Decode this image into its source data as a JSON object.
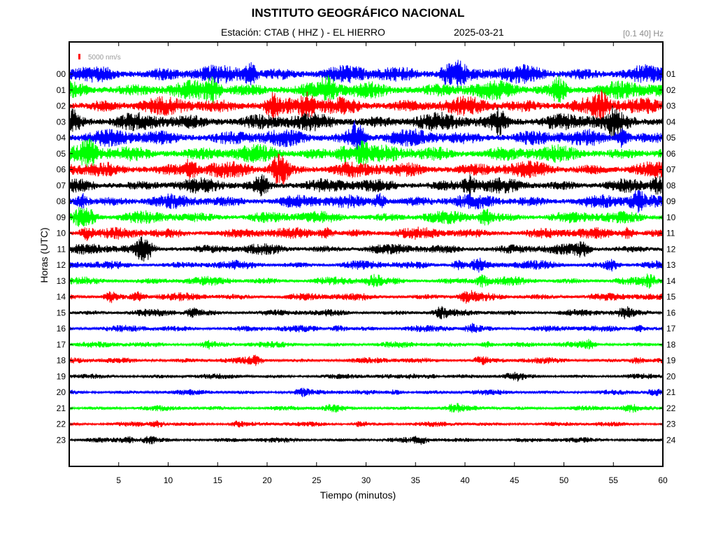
{
  "header": {
    "title": "INSTITUTO GEOGRÁFICO NACIONAL",
    "station_label": "Estación:  CTAB ( HHZ ) - EL HIERRO",
    "date": "2025-03-21",
    "filter": "[0.1 40] Hz"
  },
  "chart_data": {
    "type": "line",
    "title": "INSTITUTO GEOGRÁFICO NACIONAL",
    "xlabel": "Tiempo (minutos)",
    "ylabel": "Horas (UTC)",
    "xlim": [
      0,
      60
    ],
    "x_ticks": [
      "5",
      "10",
      "15",
      "20",
      "25",
      "30",
      "35",
      "40",
      "45",
      "50",
      "55",
      "60"
    ],
    "y_ticks_left": [
      "00",
      "01",
      "02",
      "03",
      "04",
      "05",
      "06",
      "07",
      "08",
      "09",
      "10",
      "11",
      "12",
      "13",
      "14",
      "15",
      "16",
      "17",
      "18",
      "19",
      "20",
      "21",
      "22",
      "23"
    ],
    "y_ticks_right": [
      "01",
      "02",
      "03",
      "04",
      "05",
      "06",
      "07",
      "08",
      "09",
      "10",
      "11",
      "12",
      "13",
      "14",
      "15",
      "16",
      "17",
      "18",
      "19",
      "20",
      "21",
      "22",
      "23",
      "24"
    ],
    "scale_label": "5000 nm/s",
    "trace_colors": [
      "#0000ff",
      "#00ff00",
      "#ff0000",
      "#000000"
    ],
    "amplitude_by_hour": [
      1.0,
      1.0,
      1.0,
      1.0,
      0.95,
      0.95,
      0.9,
      0.8,
      0.78,
      0.7,
      0.65,
      0.6,
      0.5,
      0.48,
      0.45,
      0.4,
      0.38,
      0.35,
      0.35,
      0.3,
      0.3,
      0.3,
      0.28,
      0.3
    ],
    "grid": false
  }
}
